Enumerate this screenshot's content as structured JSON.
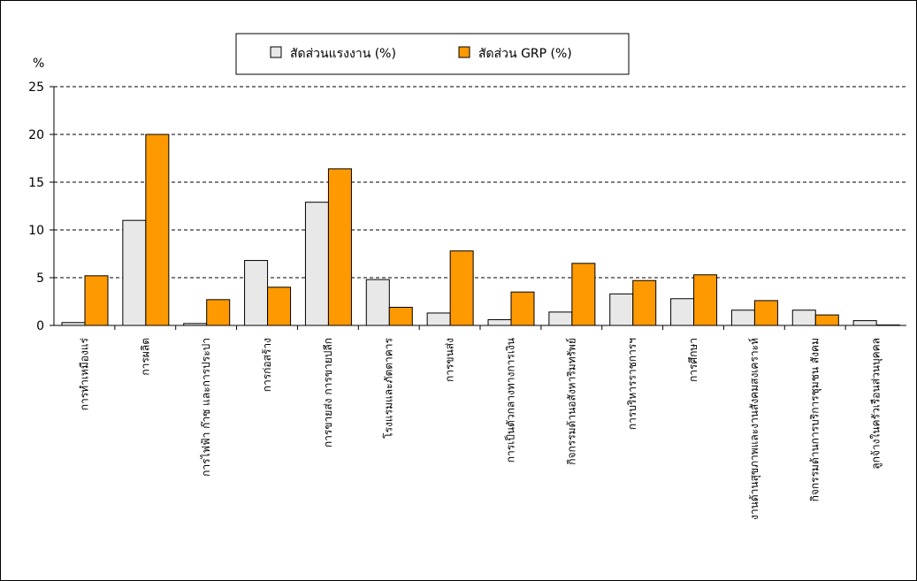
{
  "chart_data": {
    "type": "bar",
    "ylabel": "%",
    "ylim": [
      0,
      25
    ],
    "yticks": [
      0,
      5,
      10,
      15,
      20,
      25
    ],
    "grid": "horizontal-dashed",
    "legend_position": "top-center",
    "categories": [
      "การทำเหมืองแร่",
      "การผลิต",
      "การไฟฟ้า ก๊าซ และการประปา",
      "การก่อสร้าง",
      "การขายส่ง การขายปลีก",
      "โรงแรมและภัตตาคาร",
      "การขนส่ง",
      "การเป็นตัวกลางทางการเงิน",
      "กิจกรรมด้านอสังหาริมทรัพย์",
      "การบริหารราชการฯ",
      "การศึกษา",
      "งานด้านสุขภาพและงานสังคมสงเคราะห์",
      "กิจกรรมด้านการบริการชุมชน สังคม",
      "ลูกจ้างในครัวเรือนส่วนบุคคล"
    ],
    "series": [
      {
        "name": "สัดส่วนแรงงาน (%)",
        "color": "#e8e8e8",
        "values": [
          0.3,
          11.0,
          0.2,
          6.8,
          12.9,
          4.8,
          1.3,
          0.6,
          1.4,
          3.3,
          2.8,
          1.6,
          1.6,
          0.5
        ]
      },
      {
        "name": "สัดส่วน GRP (%)",
        "color": "#ff9900",
        "values": [
          5.2,
          20.0,
          2.7,
          4.0,
          16.4,
          1.9,
          7.8,
          3.5,
          6.5,
          4.7,
          5.3,
          2.6,
          1.1,
          0.05
        ]
      }
    ]
  }
}
